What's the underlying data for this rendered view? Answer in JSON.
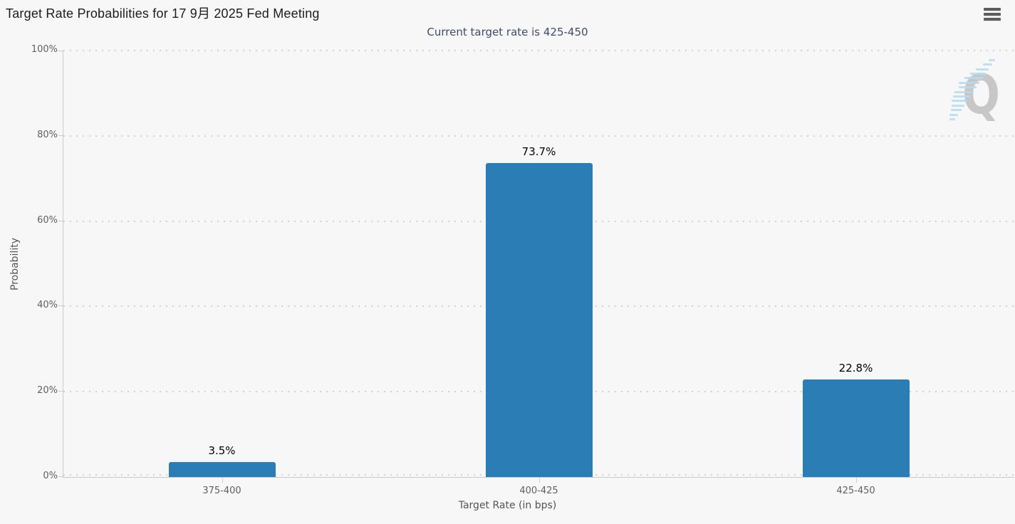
{
  "chart_data": {
    "type": "bar",
    "title": "Target Rate Probabilities for 17 9月 2025 Fed Meeting",
    "subtitle": "Current target rate is 425-450",
    "categories": [
      "375-400",
      "400-425",
      "425-450"
    ],
    "values": [
      3.5,
      73.7,
      22.8
    ],
    "data_labels": [
      "3.5%",
      "73.7%",
      "22.8%"
    ],
    "xlabel": "Target Rate (in bps)",
    "ylabel": "Probability",
    "ylim": [
      0,
      100
    ],
    "ytick_step": 20,
    "yticks": [
      "0%",
      "20%",
      "40%",
      "60%",
      "80%",
      "100%"
    ],
    "grid": "horizontal-dotted",
    "legend": "none",
    "bar_color": "#2b7db5",
    "watermark_letter": "Q"
  },
  "icons": {
    "menu": "hamburger-icon"
  }
}
